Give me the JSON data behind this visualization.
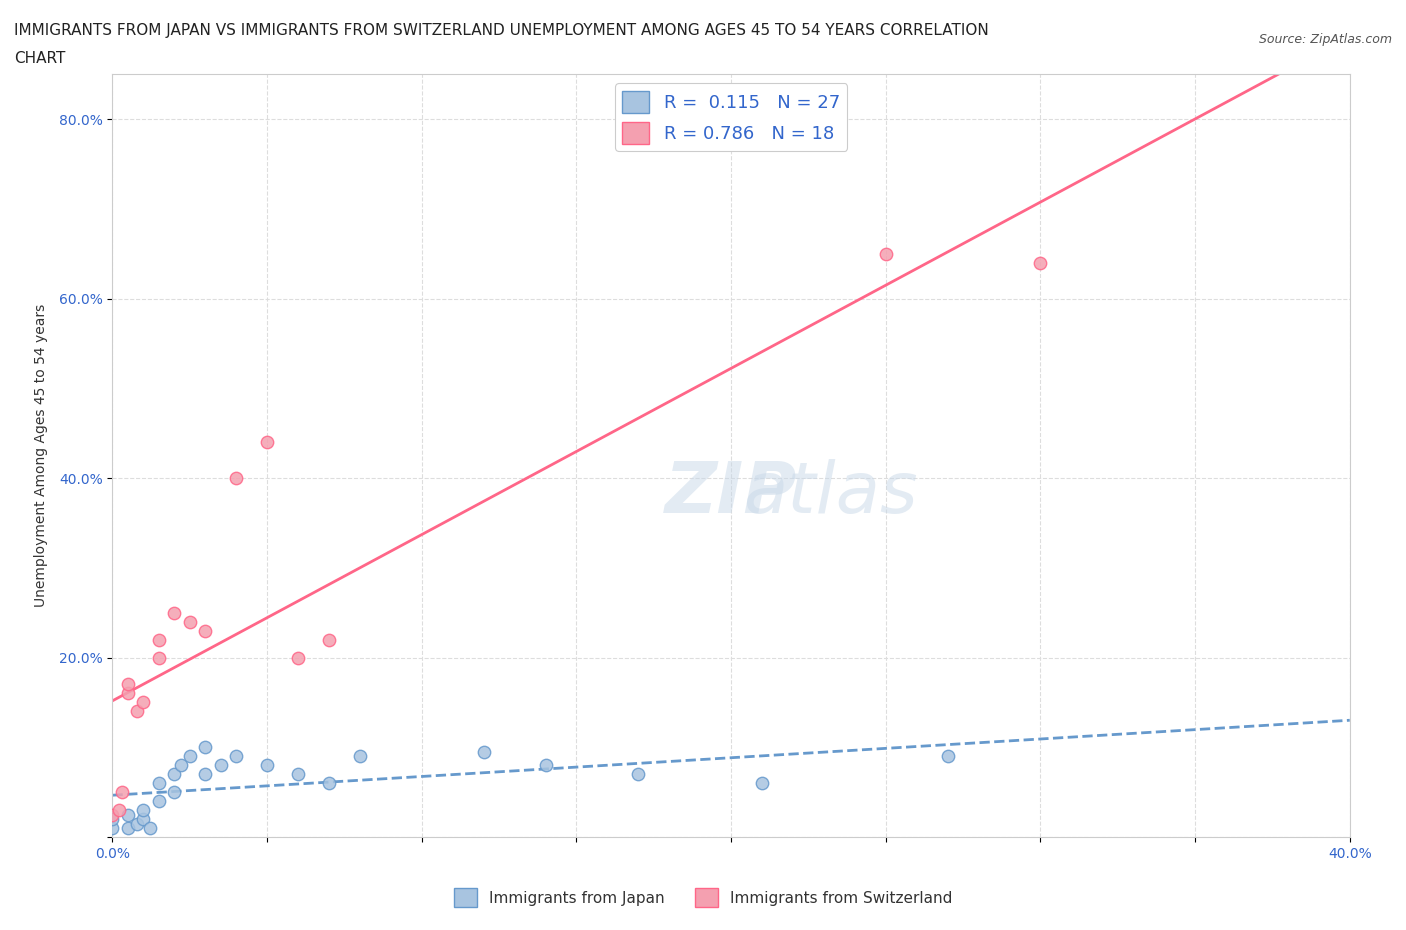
{
  "title_line1": "IMMIGRANTS FROM JAPAN VS IMMIGRANTS FROM SWITZERLAND UNEMPLOYMENT AMONG AGES 45 TO 54 YEARS CORRELATION",
  "title_line2": "CHART",
  "source": "Source: ZipAtlas.com",
  "xlabel": "",
  "ylabel": "Unemployment Among Ages 45 to 54 years",
  "xmin": 0.0,
  "xmax": 0.4,
  "ymin": 0.0,
  "ymax": 0.85,
  "xticks": [
    0.0,
    0.05,
    0.1,
    0.15,
    0.2,
    0.25,
    0.3,
    0.35,
    0.4
  ],
  "xtick_labels": [
    "0.0%",
    "",
    "",
    "",
    "",
    "",
    "",
    "",
    "40.0%"
  ],
  "ytick_labels": [
    "",
    "20.0%",
    "",
    "40.0%",
    "",
    "60.0%",
    "",
    "80.0%"
  ],
  "yticks": [
    0.0,
    0.2,
    0.3,
    0.4,
    0.5,
    0.6,
    0.7,
    0.8
  ],
  "watermark": "ZIPatlas",
  "japan_color": "#a8c4e0",
  "switzerland_color": "#f4a0b0",
  "japan_line_color": "#6699cc",
  "switzerland_line_color": "#ff6688",
  "japan_r": 0.115,
  "japan_n": 27,
  "switzerland_r": 0.786,
  "switzerland_n": 18,
  "japan_scatter_x": [
    0.0,
    0.0,
    0.005,
    0.005,
    0.008,
    0.01,
    0.01,
    0.012,
    0.015,
    0.015,
    0.02,
    0.02,
    0.022,
    0.025,
    0.03,
    0.03,
    0.035,
    0.04,
    0.05,
    0.06,
    0.07,
    0.08,
    0.12,
    0.14,
    0.17,
    0.21,
    0.27
  ],
  "japan_scatter_y": [
    0.01,
    0.02,
    0.01,
    0.025,
    0.015,
    0.02,
    0.03,
    0.01,
    0.04,
    0.06,
    0.05,
    0.07,
    0.08,
    0.09,
    0.07,
    0.1,
    0.08,
    0.09,
    0.08,
    0.07,
    0.06,
    0.09,
    0.095,
    0.08,
    0.07,
    0.06,
    0.09
  ],
  "switzerland_scatter_x": [
    0.0,
    0.002,
    0.003,
    0.005,
    0.005,
    0.008,
    0.01,
    0.015,
    0.015,
    0.02,
    0.025,
    0.03,
    0.04,
    0.05,
    0.06,
    0.07,
    0.25,
    0.3
  ],
  "switzerland_scatter_y": [
    0.025,
    0.03,
    0.05,
    0.16,
    0.17,
    0.14,
    0.15,
    0.2,
    0.22,
    0.25,
    0.24,
    0.23,
    0.4,
    0.44,
    0.2,
    0.22,
    0.65,
    0.64
  ],
  "background_color": "#ffffff",
  "grid_color": "#dddddd"
}
